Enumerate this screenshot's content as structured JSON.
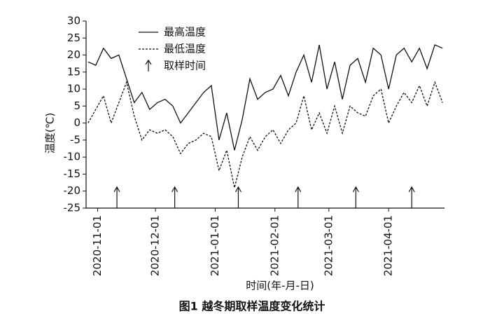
{
  "chart_data": {
    "type": "line",
    "caption": "图1    越冬期取样温度变化统计",
    "xlabel": "时间(年-月-日)",
    "ylabel": "温度(℃)",
    "x": [
      "2020-10-27",
      "2020-10-31",
      "2020-11-04",
      "2020-11-08",
      "2020-11-12",
      "2020-11-16",
      "2020-11-20",
      "2020-11-24",
      "2020-11-28",
      "2020-12-02",
      "2020-12-06",
      "2020-12-10",
      "2020-12-14",
      "2020-12-18",
      "2020-12-22",
      "2020-12-26",
      "2020-12-30",
      "2021-01-03",
      "2021-01-07",
      "2021-01-11",
      "2021-01-15",
      "2021-01-19",
      "2021-01-23",
      "2021-01-27",
      "2021-01-31",
      "2021-02-04",
      "2021-02-08",
      "2021-02-12",
      "2021-02-16",
      "2021-02-20",
      "2021-02-24",
      "2021-02-28",
      "2021-03-04",
      "2021-03-08",
      "2021-03-12",
      "2021-03-16",
      "2021-03-20",
      "2021-03-24",
      "2021-03-28",
      "2021-04-01",
      "2021-04-05",
      "2021-04-09",
      "2021-04-13",
      "2021-04-17",
      "2021-04-21",
      "2021-04-25",
      "2021-04-29"
    ],
    "series": [
      {
        "name": "最高温度",
        "color": "#111111",
        "dash": false,
        "values": [
          18,
          17,
          22,
          19,
          20,
          13,
          6,
          9,
          4,
          6,
          7,
          5,
          0,
          3,
          6,
          9,
          11,
          -5,
          3,
          -8,
          1,
          13,
          7,
          9,
          10,
          14,
          8,
          15,
          20,
          12,
          23,
          10,
          18,
          7,
          17,
          19,
          12,
          22,
          20,
          10,
          20,
          22,
          18,
          22,
          16,
          23,
          22
        ]
      },
      {
        "name": "最低温度",
        "color": "#111111",
        "dash": true,
        "values": [
          0,
          4,
          8,
          0,
          6,
          12,
          2,
          -5,
          -2,
          -3,
          -2,
          -4,
          -9,
          -6,
          -5,
          -3,
          -4,
          -14,
          -8,
          -19,
          -10,
          -4,
          -8,
          -4,
          -2,
          -6,
          -2,
          0,
          8,
          -2,
          3,
          -3,
          5,
          -3,
          5,
          3,
          2,
          8,
          10,
          0,
          5,
          9,
          6,
          11,
          5,
          12,
          6
        ]
      }
    ],
    "sampling": {
      "name": "取样时间",
      "x": [
        "2020-11-11",
        "2020-12-11",
        "2021-01-13",
        "2021-02-13",
        "2021-03-15",
        "2021-04-13"
      ]
    },
    "xlim": [
      "2020-10-26",
      "2021-04-30"
    ],
    "xticks": [
      "2020-11-01",
      "2020-12-01",
      "2021-01-01",
      "2021-02-01",
      "2021-03-01",
      "2021-04-01"
    ],
    "ylim": [
      -25,
      30
    ],
    "yticks": [
      -25,
      -20,
      -15,
      -10,
      -5,
      0,
      5,
      10,
      15,
      20,
      25,
      30
    ],
    "legend": "upper-left"
  }
}
